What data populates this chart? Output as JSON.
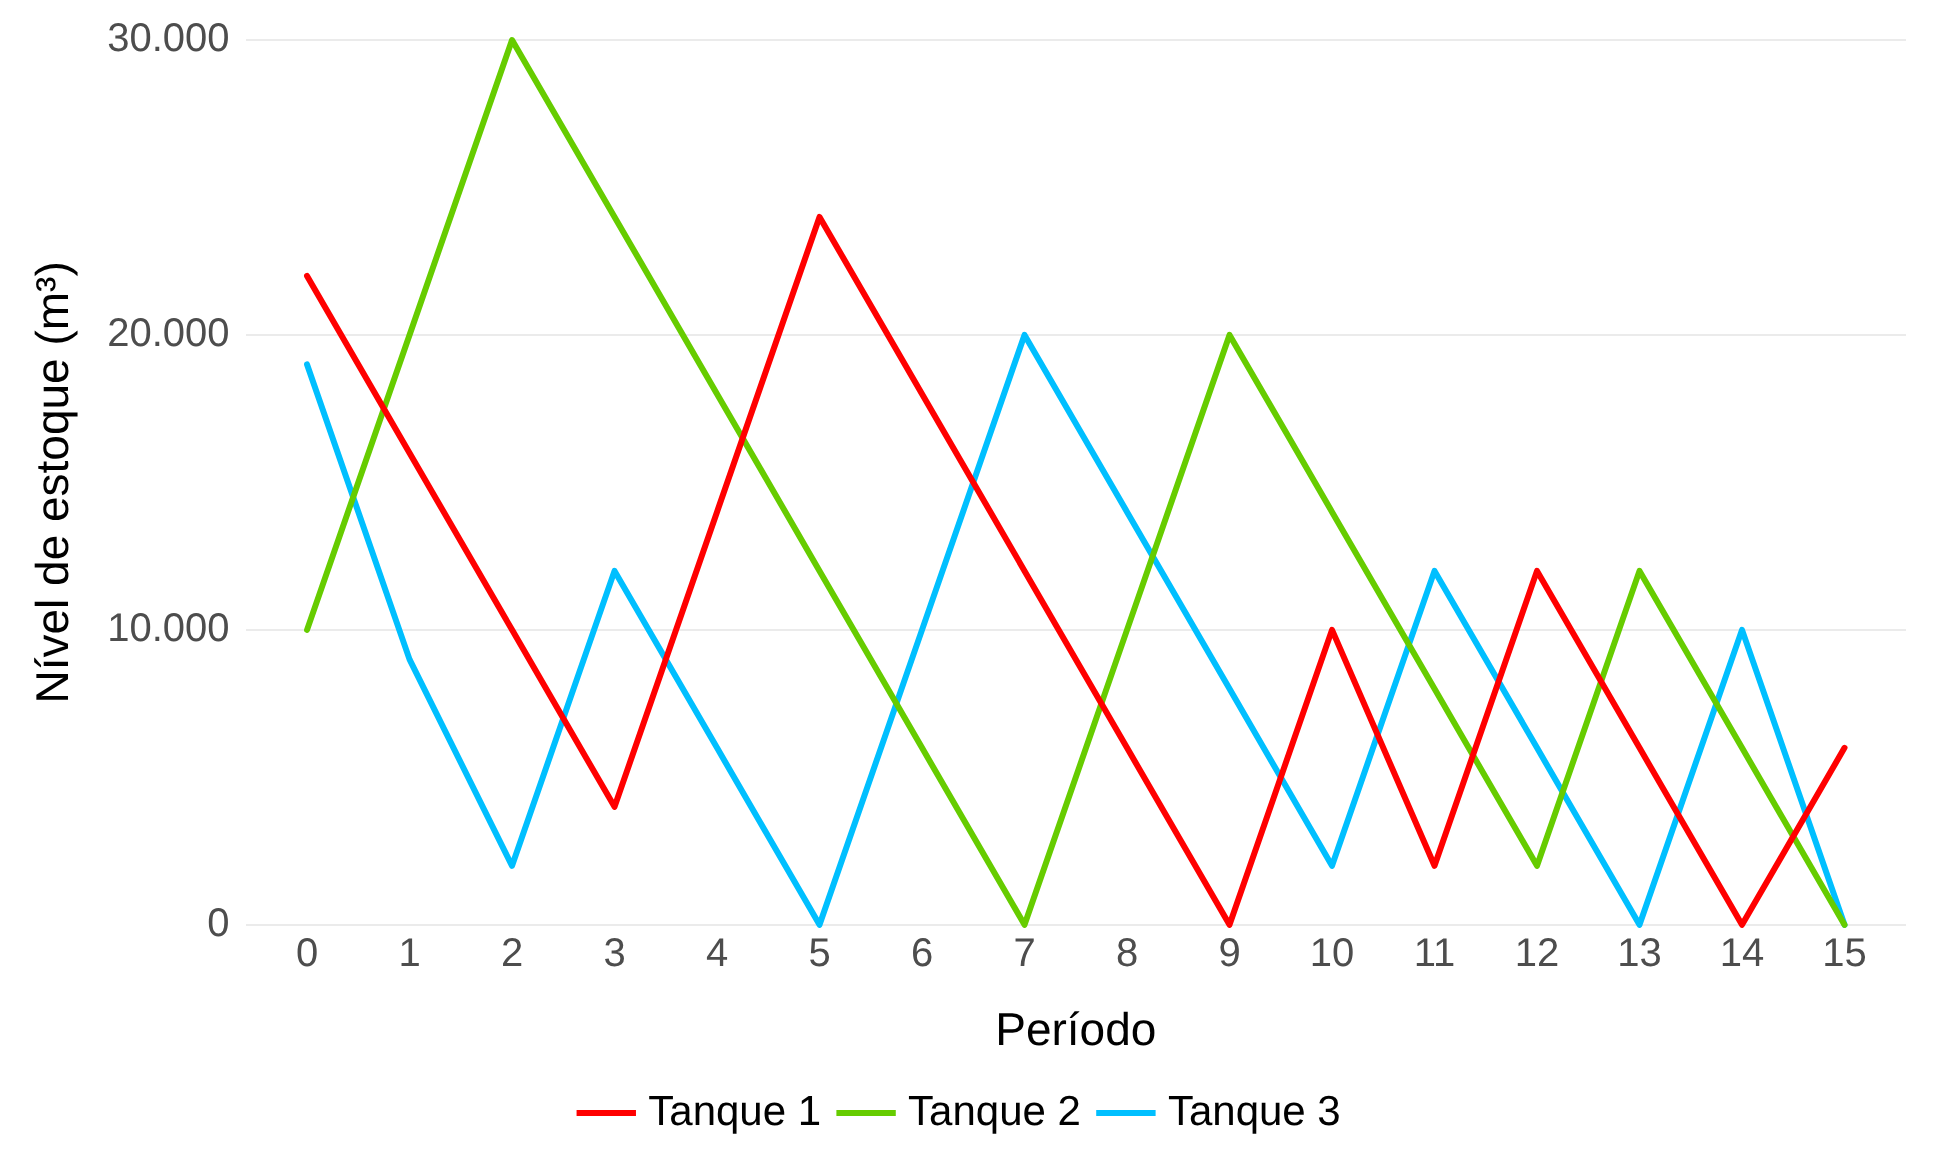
{
  "chart_data": {
    "type": "line",
    "xlabel": "Período",
    "ylabel": "Nível de estoque (m³)",
    "x": [
      0,
      1,
      2,
      3,
      4,
      5,
      6,
      7,
      8,
      9,
      10,
      11,
      12,
      13,
      14,
      15
    ],
    "xlim": [
      -0.6,
      15.6
    ],
    "xticks": [
      0,
      1,
      2,
      3,
      4,
      5,
      6,
      7,
      8,
      9,
      10,
      11,
      12,
      13,
      14,
      15
    ],
    "ylim": [
      0,
      30000
    ],
    "yticks": [
      0,
      {
        "value": 10000,
        "label": "10.000"
      },
      {
        "value": 20000,
        "label": "20.000"
      },
      {
        "value": 30000,
        "label": "30.000"
      }
    ],
    "grid": "y",
    "legend": "bottom",
    "marker": "none",
    "line_style": "solid",
    "series": [
      {
        "name": "Tanque 1",
        "color": "#ff0000",
        "values": [
          22000,
          16000,
          10000,
          4000,
          14000,
          24000,
          18000,
          12000,
          6000,
          0,
          10000,
          2000,
          12000,
          6000,
          0,
          6000
        ]
      },
      {
        "name": "Tanque 2",
        "color": "#66cc00",
        "values": [
          10000,
          20000,
          30000,
          24000,
          18000,
          12000,
          6000,
          0,
          10000,
          20000,
          14000,
          8000,
          2000,
          12000,
          6000,
          0
        ]
      },
      {
        "name": "Tanque 3",
        "color": "#00bfff",
        "values": [
          19000,
          9000,
          2000,
          12000,
          6000,
          0,
          10000,
          20000,
          14000,
          8000,
          2000,
          12000,
          6000,
          0,
          10000,
          0
        ]
      }
    ]
  }
}
